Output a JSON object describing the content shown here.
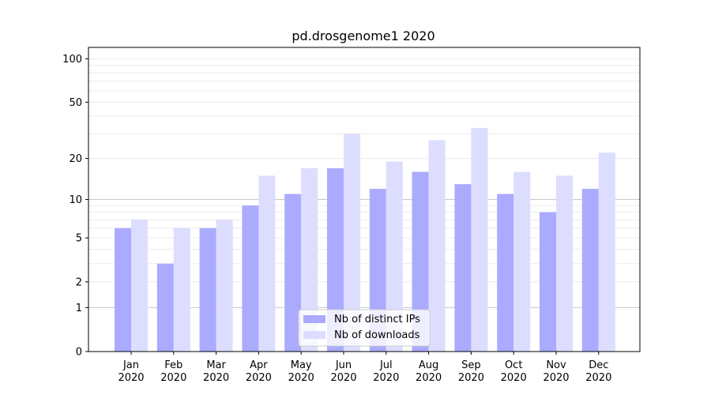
{
  "chart_data": {
    "type": "bar",
    "title": "pd.drosgenome1 2020",
    "xlabel": "",
    "ylabel": "",
    "categories": [
      [
        "Jan",
        "2020"
      ],
      [
        "Feb",
        "2020"
      ],
      [
        "Mar",
        "2020"
      ],
      [
        "Apr",
        "2020"
      ],
      [
        "May",
        "2020"
      ],
      [
        "Jun",
        "2020"
      ],
      [
        "Jul",
        "2020"
      ],
      [
        "Aug",
        "2020"
      ],
      [
        "Sep",
        "2020"
      ],
      [
        "Oct",
        "2020"
      ],
      [
        "Nov",
        "2020"
      ],
      [
        "Dec",
        "2020"
      ]
    ],
    "series": [
      {
        "name": "Nb of distinct IPs",
        "color": "#aaaaff",
        "values": [
          6,
          3,
          6,
          9,
          11,
          17,
          12,
          16,
          13,
          11,
          8,
          12
        ]
      },
      {
        "name": "Nb of downloads",
        "color": "#ddddff",
        "values": [
          7,
          6,
          7,
          15,
          17,
          30,
          19,
          27,
          33,
          16,
          15,
          22
        ]
      }
    ],
    "y_scale": "log(1+y)",
    "ylim": [
      0,
      120
    ],
    "y_ticks": [
      0,
      1,
      2,
      5,
      10,
      20,
      50,
      100
    ],
    "grid": true,
    "legend_position": "bottom-center"
  }
}
